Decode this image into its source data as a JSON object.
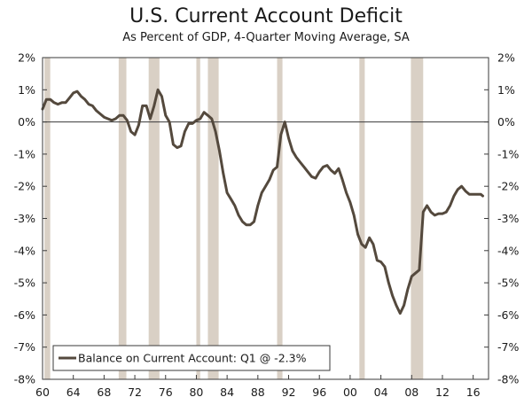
{
  "chart_data": {
    "type": "line",
    "title": "U.S. Current Account Deficit",
    "subtitle": "As Percent of GDP, 4-Quarter Moving Average, SA",
    "xlabel": "",
    "ylabel": "",
    "xlim": [
      1960,
      2018
    ],
    "ylim": [
      -8,
      2
    ],
    "x_ticks": [
      1960,
      1964,
      1968,
      1972,
      1976,
      1980,
      1984,
      1988,
      1992,
      1996,
      2000,
      2004,
      2008,
      2012,
      2016
    ],
    "x_tick_labels": [
      "60",
      "64",
      "68",
      "72",
      "76",
      "80",
      "84",
      "88",
      "92",
      "96",
      "00",
      "04",
      "08",
      "12",
      "16"
    ],
    "y_ticks": [
      2,
      1,
      0,
      -1,
      -2,
      -3,
      -4,
      -5,
      -6,
      -7,
      -8
    ],
    "y_tick_labels": [
      "2%",
      "1%",
      "0%",
      "-1%",
      "-2%",
      "-3%",
      "-4%",
      "-5%",
      "-6%",
      "-7%",
      "-8%"
    ],
    "grid": false,
    "legend": {
      "position": "bottom-left",
      "entries": [
        "Balance on Current Account: Q1 @ -2.3%"
      ]
    },
    "recessions": [
      [
        1960.25,
        1961.0
      ],
      [
        1969.9,
        1970.9
      ],
      [
        1973.8,
        1975.2
      ],
      [
        1980.0,
        1980.5
      ],
      [
        1981.5,
        1982.9
      ],
      [
        1990.5,
        1991.2
      ],
      [
        2001.2,
        2001.9
      ],
      [
        2007.9,
        2009.5
      ]
    ],
    "series": [
      {
        "name": "Balance on Current Account: Q1 @ -2.3%",
        "color": "#54493d",
        "x": [
          1960.0,
          1960.5,
          1961.0,
          1961.5,
          1962.0,
          1962.5,
          1963.0,
          1963.5,
          1964.0,
          1964.5,
          1965.0,
          1965.5,
          1966.0,
          1966.5,
          1967.0,
          1967.5,
          1968.0,
          1968.5,
          1969.0,
          1969.5,
          1970.0,
          1970.5,
          1971.0,
          1971.5,
          1972.0,
          1972.5,
          1973.0,
          1973.5,
          1974.0,
          1974.5,
          1975.0,
          1975.5,
          1976.0,
          1976.5,
          1977.0,
          1977.5,
          1978.0,
          1978.5,
          1979.0,
          1979.5,
          1980.0,
          1980.5,
          1981.0,
          1981.5,
          1982.0,
          1982.5,
          1983.0,
          1983.5,
          1984.0,
          1984.5,
          1985.0,
          1985.5,
          1986.0,
          1986.5,
          1987.0,
          1987.5,
          1988.0,
          1988.5,
          1989.0,
          1989.5,
          1990.0,
          1990.5,
          1991.0,
          1991.5,
          1992.0,
          1992.5,
          1993.0,
          1993.5,
          1994.0,
          1994.5,
          1995.0,
          1995.5,
          1996.0,
          1996.5,
          1997.0,
          1997.5,
          1998.0,
          1998.5,
          1999.0,
          1999.5,
          2000.0,
          2000.5,
          2001.0,
          2001.5,
          2002.0,
          2002.5,
          2003.0,
          2003.5,
          2004.0,
          2004.5,
          2005.0,
          2005.5,
          2006.0,
          2006.5,
          2007.0,
          2007.5,
          2008.0,
          2008.5,
          2009.0,
          2009.5,
          2010.0,
          2010.5,
          2011.0,
          2011.5,
          2012.0,
          2012.5,
          2013.0,
          2013.5,
          2014.0,
          2014.5,
          2015.0,
          2015.5,
          2016.0,
          2016.5,
          2017.0,
          2017.25
        ],
        "values": [
          0.4,
          0.7,
          0.7,
          0.6,
          0.55,
          0.6,
          0.6,
          0.75,
          0.9,
          0.95,
          0.8,
          0.7,
          0.55,
          0.5,
          0.35,
          0.25,
          0.15,
          0.1,
          0.05,
          0.1,
          0.2,
          0.2,
          0.05,
          -0.3,
          -0.4,
          -0.1,
          0.5,
          0.5,
          0.1,
          0.5,
          1.0,
          0.8,
          0.2,
          0.0,
          -0.7,
          -0.8,
          -0.75,
          -0.3,
          -0.05,
          -0.05,
          0.05,
          0.1,
          0.3,
          0.2,
          0.1,
          -0.3,
          -0.9,
          -1.6,
          -2.2,
          -2.4,
          -2.6,
          -2.9,
          -3.1,
          -3.2,
          -3.2,
          -3.1,
          -2.6,
          -2.2,
          -2.0,
          -1.8,
          -1.5,
          -1.4,
          -0.4,
          0.0,
          -0.5,
          -0.9,
          -1.1,
          -1.25,
          -1.4,
          -1.55,
          -1.7,
          -1.75,
          -1.55,
          -1.4,
          -1.35,
          -1.5,
          -1.6,
          -1.45,
          -1.8,
          -2.2,
          -2.5,
          -2.9,
          -3.5,
          -3.8,
          -3.9,
          -3.6,
          -3.8,
          -4.3,
          -4.35,
          -4.5,
          -5.0,
          -5.4,
          -5.7,
          -5.95,
          -5.7,
          -5.2,
          -4.8,
          -4.7,
          -4.6,
          -2.8,
          -2.6,
          -2.8,
          -2.9,
          -2.85,
          -2.85,
          -2.8,
          -2.6,
          -2.3,
          -2.1,
          -2.0,
          -2.15,
          -2.25,
          -2.25,
          -2.25,
          -2.25,
          -2.3
        ]
      }
    ]
  }
}
